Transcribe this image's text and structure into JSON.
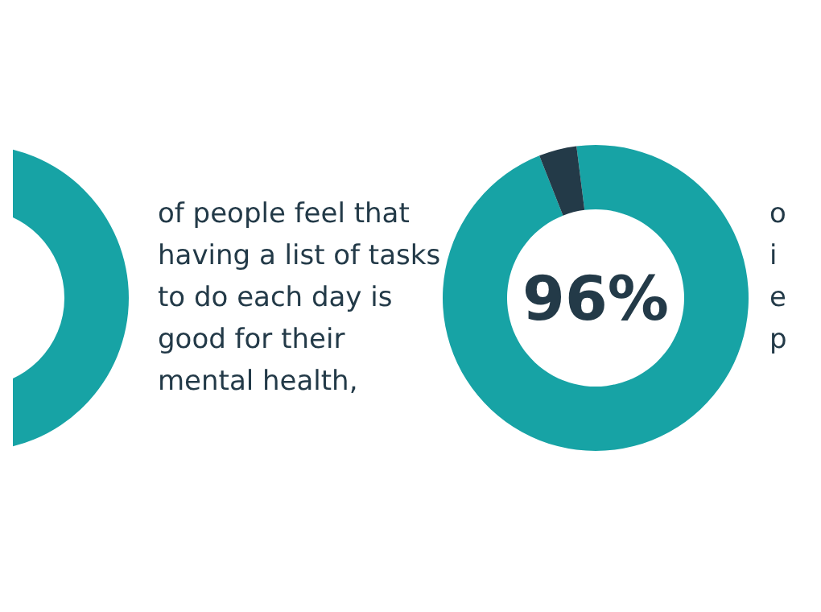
{
  "chart_data": [
    {
      "type": "other",
      "annotations": [
        "of people feel that",
        "having a list of tasks",
        "to do each day is",
        "good for their",
        "mental health,"
      ]
    },
    {
      "type": "donut",
      "categories": [
        null,
        null
      ],
      "values": [
        96,
        4
      ],
      "colors": [
        "#17a3a5",
        "#233a48"
      ],
      "value_labels": [
        "96%",
        null
      ],
      "annotations": [
        "o",
        "i",
        "e",
        "p"
      ]
    }
  ]
}
